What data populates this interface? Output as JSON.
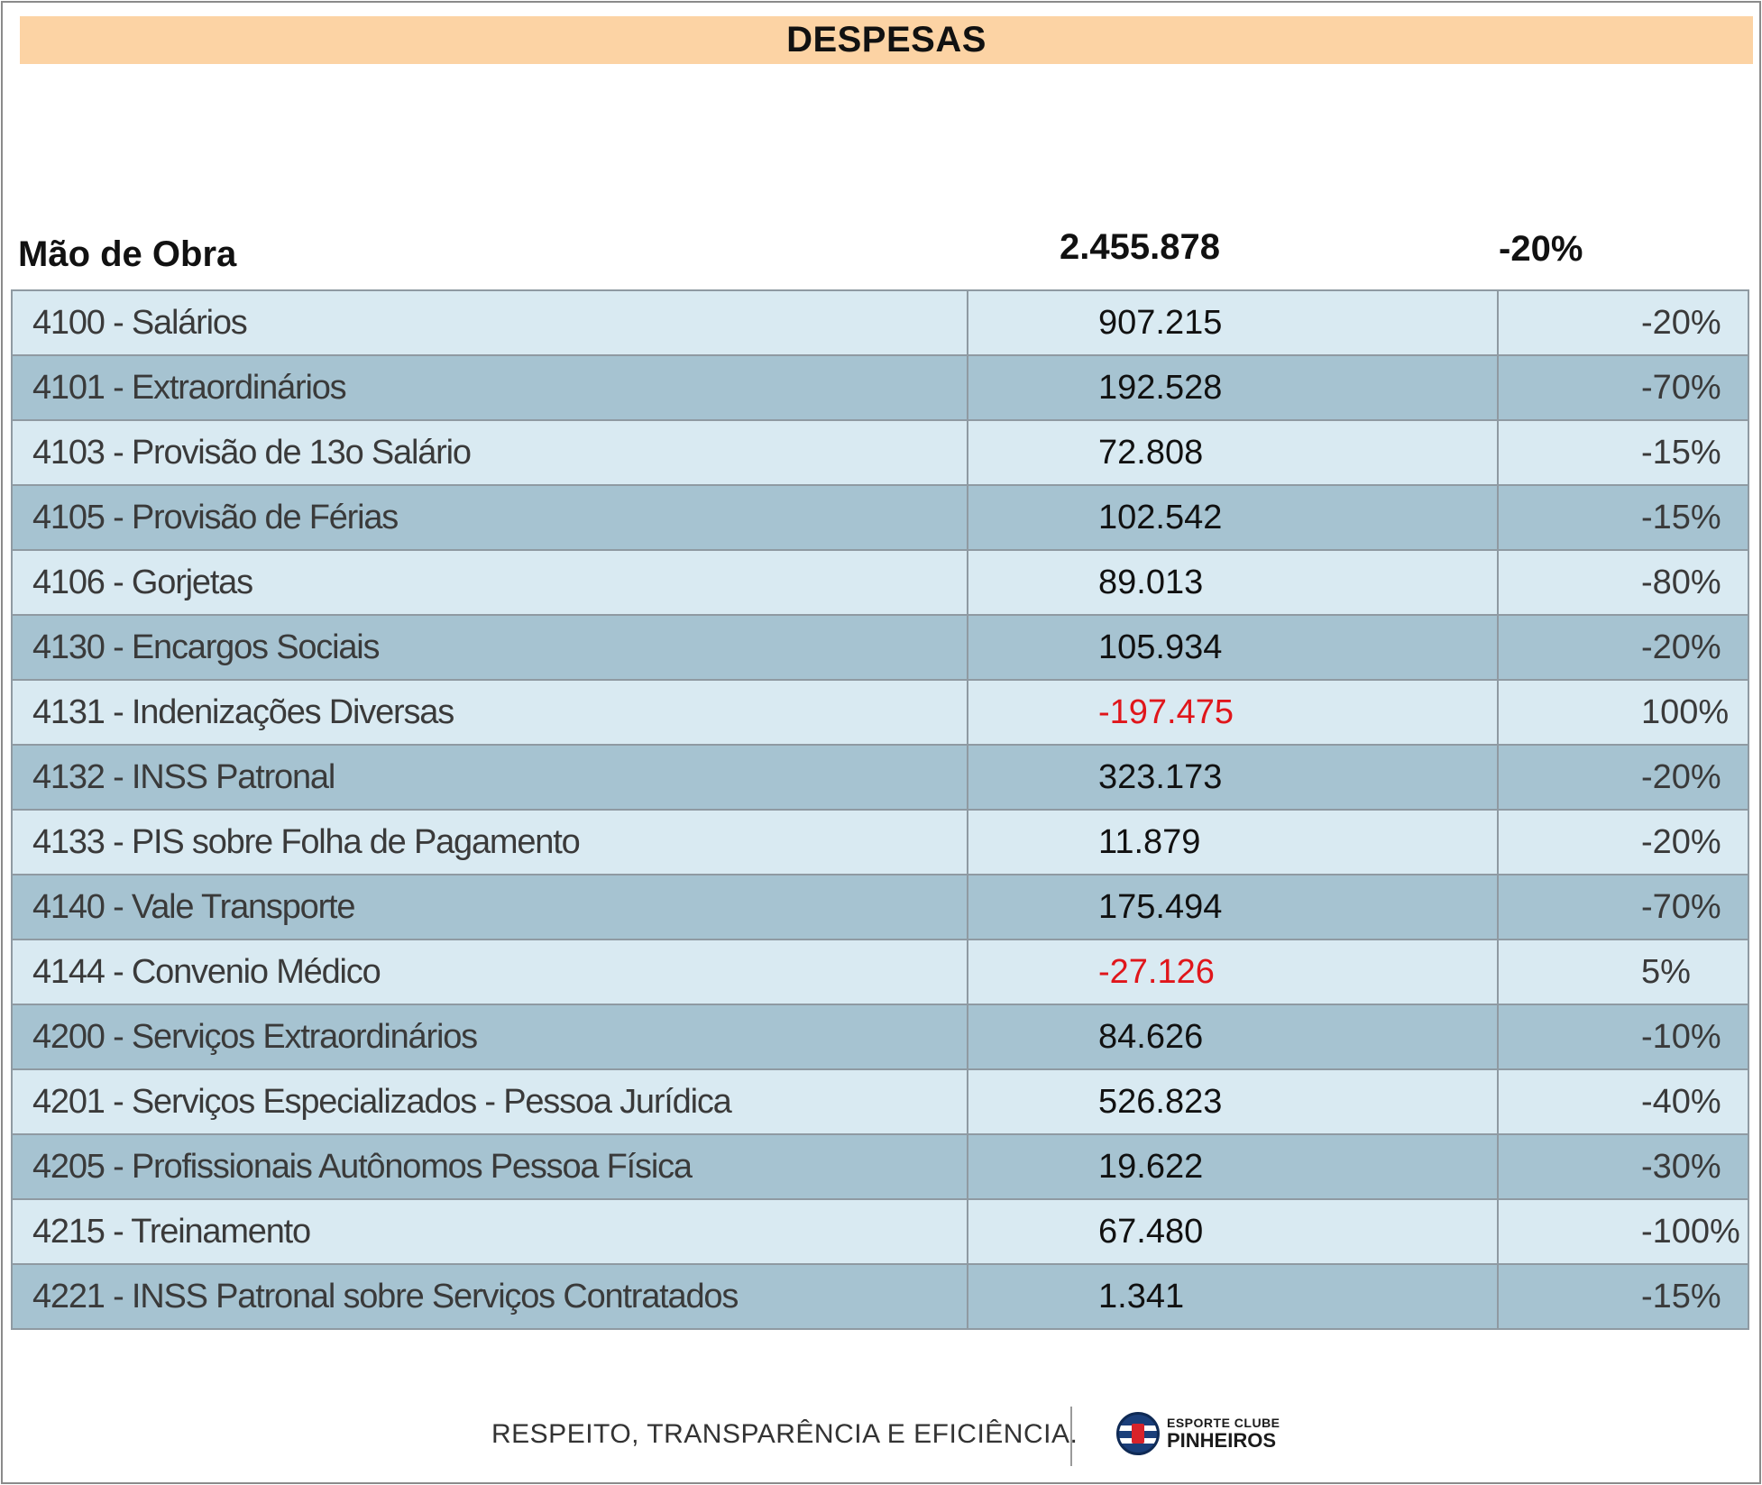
{
  "header": {
    "title": "DESPESAS"
  },
  "section": {
    "label": "Mão de Obra",
    "total": "2.455.878",
    "percent": "-20%"
  },
  "rows": [
    {
      "name": "4100 - Salários",
      "value": "907.215",
      "percent": "-20%",
      "negative": false
    },
    {
      "name": "4101 - Extraordinários",
      "value": "192.528",
      "percent": "-70%",
      "negative": false
    },
    {
      "name": "4103 - Provisão de 13o Salário",
      "value": "72.808",
      "percent": "-15%",
      "negative": false
    },
    {
      "name": "4105 - Provisão de Férias",
      "value": "102.542",
      "percent": "-15%",
      "negative": false
    },
    {
      "name": "4106 - Gorjetas",
      "value": "89.013",
      "percent": "-80%",
      "negative": false
    },
    {
      "name": "4130 - Encargos Sociais",
      "value": "105.934",
      "percent": "-20%",
      "negative": false
    },
    {
      "name": "4131 - Indenizações Diversas",
      "value": "-197.475",
      "percent": "100%",
      "negative": true
    },
    {
      "name": "4132 - INSS Patronal",
      "value": "323.173",
      "percent": "-20%",
      "negative": false
    },
    {
      "name": "4133 - PIS sobre Folha de Pagamento",
      "value": "11.879",
      "percent": "-20%",
      "negative": false
    },
    {
      "name": "4140 - Vale Transporte",
      "value": "175.494",
      "percent": "-70%",
      "negative": false
    },
    {
      "name": "4144 - Convenio Médico",
      "value": "-27.126",
      "percent": "5%",
      "negative": true
    },
    {
      "name": "4200 - Serviços Extraordinários",
      "value": "84.626",
      "percent": "-10%",
      "negative": false
    },
    {
      "name": "4201 - Serviços Especializados - Pessoa Jurídica",
      "value": "526.823",
      "percent": "-40%",
      "negative": false
    },
    {
      "name": "4205 - Profissionais Autônomos Pessoa Física",
      "value": "19.622",
      "percent": "-30%",
      "negative": false
    },
    {
      "name": "4215 - Treinamento",
      "value": "67.480",
      "percent": "-100%",
      "negative": false
    },
    {
      "name": "4221 - INSS Patronal sobre Serviços Contratados",
      "value": "1.341",
      "percent": "-15%",
      "negative": false
    }
  ],
  "footer": {
    "slogan": "RESPEITO, TRANSPARÊNCIA E EFICIÊNCIA.",
    "logo_small": "ESPORTE CLUBE",
    "logo_big": "PINHEIROS",
    "logo_icon": "club-crest-icon"
  },
  "colors": {
    "title_bg": "#fcd3a4",
    "row_light": "#d9eaf2",
    "row_dark": "#a6c3d1",
    "negative": "#e0161b"
  }
}
